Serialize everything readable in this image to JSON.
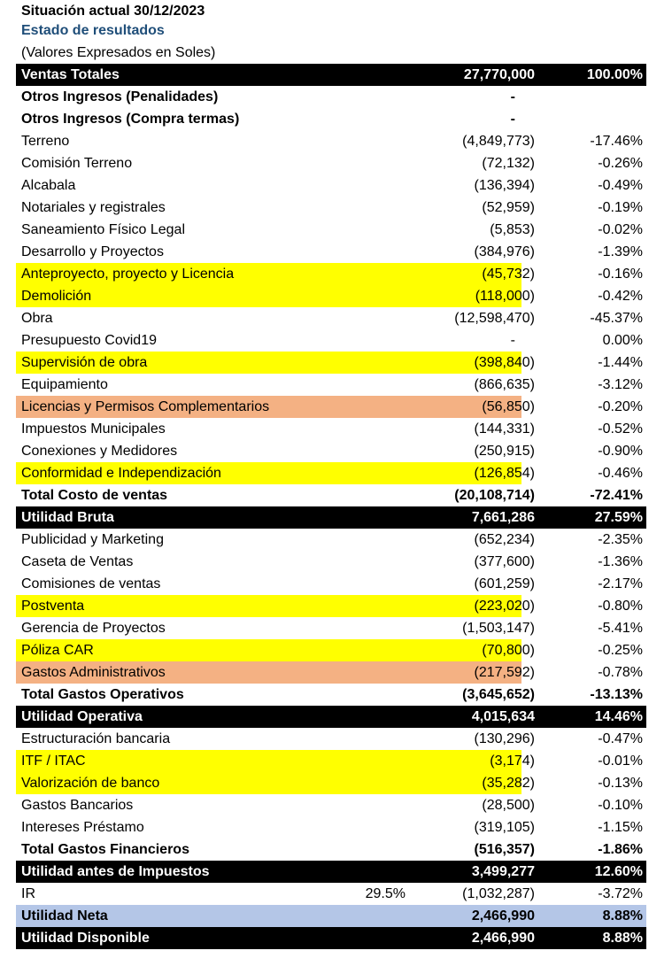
{
  "header": {
    "line1": "Situación actual 30/12/2023",
    "line2": "Estado de resultados",
    "line3": "(Valores Expresados en Soles)"
  },
  "colors": {
    "yellow": "#ffff00",
    "salmon": "#f4b183",
    "black": "#000000",
    "blue": "#b4c6e7",
    "title_blue": "#1f4e79"
  },
  "rows": [
    {
      "label": "Ventas Totales",
      "value": "27,770,000",
      "pct": "100.00%",
      "style": "black"
    },
    {
      "label": "Otros Ingresos (Penalidades)",
      "value": "-",
      "pct": "",
      "style": "bold"
    },
    {
      "label": "Otros Ingresos (Compra termas)",
      "value": "-",
      "pct": "",
      "style": "bold"
    },
    {
      "label": "Terreno",
      "value": "(4,849,773)",
      "pct": "-17.46%",
      "style": ""
    },
    {
      "label": "Comisión Terreno",
      "value": "(72,132)",
      "pct": "-0.26%",
      "style": ""
    },
    {
      "label": "Alcabala",
      "value": "(136,394)",
      "pct": "-0.49%",
      "style": ""
    },
    {
      "label": "Notariales y registrales",
      "value": "(52,959)",
      "pct": "-0.19%",
      "style": ""
    },
    {
      "label": "Saneamiento Físico Legal",
      "value": "(5,853)",
      "pct": "-0.02%",
      "style": ""
    },
    {
      "label": "Desarrollo y Proyectos",
      "value": "(384,976)",
      "pct": "-1.39%",
      "style": ""
    },
    {
      "label": "Anteproyecto, proyecto y Licencia",
      "value": "(45,732)",
      "pct": "-0.16%",
      "style": "",
      "hl": "yellow"
    },
    {
      "label": "Demolición",
      "value": "(118,000)",
      "pct": "-0.42%",
      "style": "",
      "hl": "yellow"
    },
    {
      "label": "Obra",
      "value": "(12,598,470)",
      "pct": "-45.37%",
      "style": ""
    },
    {
      "label": "Presupuesto Covid19",
      "value": "-",
      "pct": "0.00%",
      "style": ""
    },
    {
      "label": "Supervisión de obra",
      "value": "(398,840)",
      "pct": "-1.44%",
      "style": "",
      "hl": "yellow"
    },
    {
      "label": "Equipamiento",
      "value": "(866,635)",
      "pct": "-3.12%",
      "style": ""
    },
    {
      "label": "Licencias y Permisos Complementarios",
      "value": "(56,850)",
      "pct": "-0.20%",
      "style": "",
      "hl": "salmon"
    },
    {
      "label": "Impuestos Municipales",
      "value": "(144,331)",
      "pct": "-0.52%",
      "style": ""
    },
    {
      "label": "Conexiones y Medidores",
      "value": "(250,915)",
      "pct": "-0.90%",
      "style": ""
    },
    {
      "label": "Conformidad e Independización",
      "value": "(126,854)",
      "pct": "-0.46%",
      "style": "",
      "hl": "yellow"
    },
    {
      "label": "Total Costo de ventas",
      "value": "(20,108,714)",
      "pct": "-72.41%",
      "style": "bold"
    },
    {
      "label": "Utilidad Bruta",
      "value": "7,661,286",
      "pct": "27.59%",
      "style": "black"
    },
    {
      "label": "Publicidad y Marketing",
      "value": "(652,234)",
      "pct": "-2.35%",
      "style": ""
    },
    {
      "label": "Caseta de Ventas",
      "value": "(377,600)",
      "pct": "-1.36%",
      "style": ""
    },
    {
      "label": "Comisiones de ventas",
      "value": "(601,259)",
      "pct": "-2.17%",
      "style": ""
    },
    {
      "label": "Postventa",
      "value": "(223,020)",
      "pct": "-0.80%",
      "style": "",
      "hl": "yellow"
    },
    {
      "label": "Gerencia de Proyectos",
      "value": "(1,503,147)",
      "pct": "-5.41%",
      "style": ""
    },
    {
      "label": "Póliza CAR",
      "value": "(70,800)",
      "pct": "-0.25%",
      "style": "",
      "hl": "yellow"
    },
    {
      "label": "Gastos Administrativos",
      "value": "(217,592)",
      "pct": "-0.78%",
      "style": "",
      "hl": "salmon"
    },
    {
      "label": "Total Gastos Operativos",
      "value": "(3,645,652)",
      "pct": "-13.13%",
      "style": "bold"
    },
    {
      "label": "Utilidad Operativa",
      "value": "4,015,634",
      "pct": "14.46%",
      "style": "black"
    },
    {
      "label": "Estructuración bancaria",
      "value": "(130,296)",
      "pct": "-0.47%",
      "style": ""
    },
    {
      "label": "ITF / ITAC",
      "value": "(3,174)",
      "pct": "-0.01%",
      "style": "",
      "hl": "yellow"
    },
    {
      "label": "Valorización de banco",
      "value": "(35,282)",
      "pct": "-0.13%",
      "style": "",
      "hl": "yellow"
    },
    {
      "label": "Gastos Bancarios",
      "value": "(28,500)",
      "pct": "-0.10%",
      "style": ""
    },
    {
      "label": "Intereses Préstamo",
      "value": "(319,105)",
      "pct": "-1.15%",
      "style": ""
    },
    {
      "label": "Total Gastos Financieros",
      "value": "(516,357)",
      "pct": "-1.86%",
      "style": "bold"
    },
    {
      "label": "Utilidad antes de Impuestos",
      "value": "3,499,277",
      "pct": "12.60%",
      "style": "black"
    },
    {
      "label": "IR",
      "rate": "29.5%",
      "value": "(1,032,287)",
      "pct": "-3.72%",
      "style": ""
    },
    {
      "label": "Utilidad Neta",
      "value": "2,466,990",
      "pct": "8.88%",
      "style": "blue"
    },
    {
      "label": "Utilidad Disponible",
      "value": "2,466,990",
      "pct": "8.88%",
      "style": "black"
    }
  ]
}
